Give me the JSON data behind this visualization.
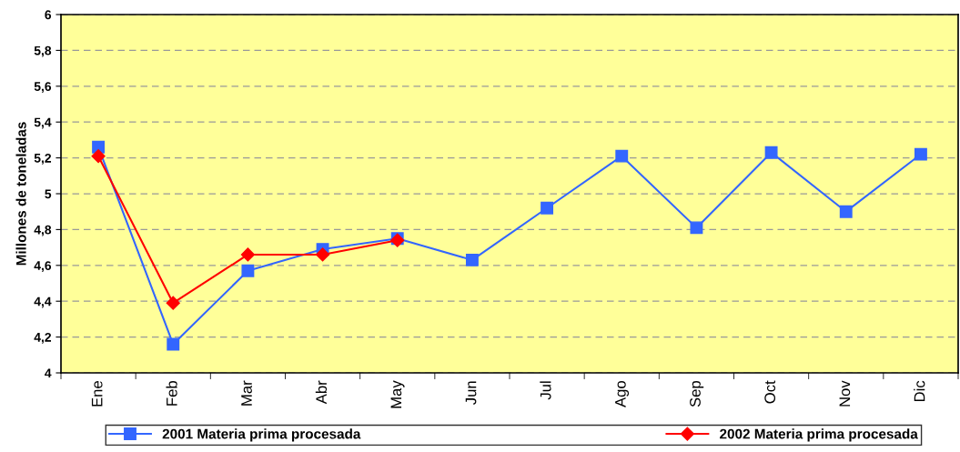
{
  "chart_data": {
    "type": "line",
    "ylabel": "Millones de toneladas",
    "categories": [
      "Ene",
      "Feb",
      "Mar",
      "Abr",
      "May",
      "Jun",
      "Jul",
      "Ago",
      "Sep",
      "Oct",
      "Nov",
      "Dic"
    ],
    "series": [
      {
        "name": "2001 Materia prima procesada",
        "color": "#3366ff",
        "marker": "square",
        "values": [
          5.26,
          4.16,
          4.57,
          4.69,
          4.75,
          4.63,
          4.92,
          5.21,
          4.81,
          5.23,
          4.9,
          5.22
        ]
      },
      {
        "name": "2002 Materia prima procesada",
        "color": "#ff0000",
        "marker": "diamond",
        "values": [
          5.21,
          4.39,
          4.66,
          4.66,
          4.74,
          null,
          null,
          null,
          null,
          null,
          null,
          null
        ]
      }
    ],
    "ylim": [
      4,
      6
    ],
    "yticks": [
      {
        "value": 4,
        "label": "4"
      },
      {
        "value": 4.2,
        "label": "4,2"
      },
      {
        "value": 4.4,
        "label": "4,4"
      },
      {
        "value": 4.6,
        "label": "4,6"
      },
      {
        "value": 4.8,
        "label": "4,8"
      },
      {
        "value": 5,
        "label": "5"
      },
      {
        "value": 5.2,
        "label": "5,2"
      },
      {
        "value": 5.4,
        "label": "5,4"
      },
      {
        "value": 5.6,
        "label": "5,6"
      },
      {
        "value": 5.8,
        "label": "5,8"
      },
      {
        "value": 6,
        "label": "6"
      }
    ],
    "grid": "y",
    "legend": "bottom",
    "line_style": "solid"
  }
}
